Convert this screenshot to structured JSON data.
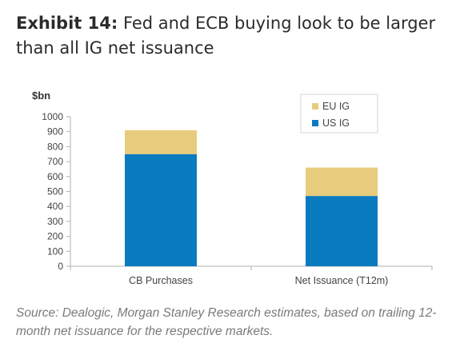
{
  "title": {
    "lead": "Exhibit 14:",
    "text": "Fed and ECB buying look to be larger than all IG net issuance"
  },
  "source": "Source: Dealogic, Morgan Stanley Research estimates, based on trailing 12-month net issuance for the respective markets.",
  "colors": {
    "us_ig": "#0b7bbf",
    "eu_ig": "#e8cc7d",
    "axis": "#b0b0b0",
    "text": "#444444"
  },
  "chart_data": {
    "type": "bar",
    "stacked": true,
    "categories": [
      "CB Purchases",
      "Net Issuance (T12m)"
    ],
    "series": [
      {
        "name": "US IG",
        "values": [
          750,
          470
        ]
      },
      {
        "name": "EU IG",
        "values": [
          160,
          190
        ]
      }
    ],
    "ylabel": "$bn",
    "ylim": [
      0,
      1000
    ],
    "yticks": [
      "0",
      "100",
      "200",
      "300",
      "400",
      "500",
      "600",
      "700",
      "800",
      "900",
      "1000"
    ],
    "grid": false,
    "legend_position": "top-right",
    "legend_order": [
      "EU IG",
      "US IG"
    ]
  }
}
